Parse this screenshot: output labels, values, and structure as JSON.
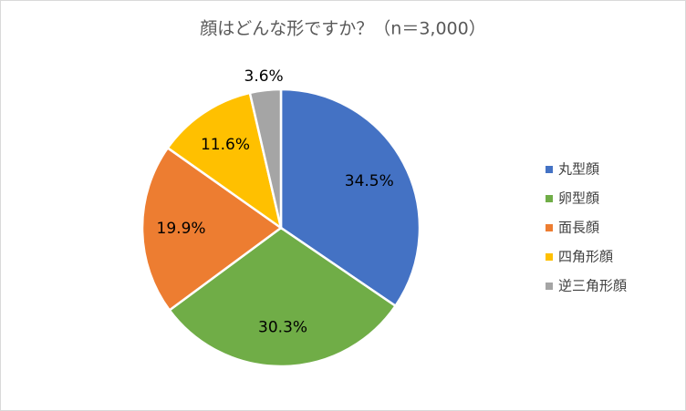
{
  "chart_data": {
    "type": "pie",
    "title": "顔はどんな形ですか？（n＝3,000）",
    "categories": [
      "丸型顔",
      "卵型顔",
      "面長顔",
      "四角形顔",
      "逆三角形顔"
    ],
    "values": [
      34.5,
      30.3,
      19.9,
      11.6,
      3.6
    ],
    "value_labels": [
      "34.5%",
      "30.3%",
      "19.9%",
      "11.6%",
      "3.6%"
    ],
    "colors": [
      "#4472c4",
      "#70ad47",
      "#ed7d31",
      "#ffc000",
      "#a5a5a5"
    ],
    "legend": "right"
  }
}
